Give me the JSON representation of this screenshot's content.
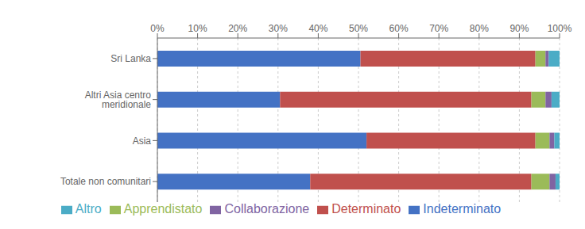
{
  "chart_data": {
    "type": "bar",
    "orientation": "horizontal",
    "stacked": true,
    "categories": [
      "Sri Lanka",
      "Altri Asia centro meridionale",
      "Asia",
      "Totale non comunitari"
    ],
    "series": [
      {
        "name": "Indeterminato",
        "color": "#4472C4",
        "values": [
          50.5,
          30.5,
          52.0,
          38.0
        ]
      },
      {
        "name": "Determinato",
        "color": "#C0504D",
        "values": [
          43.5,
          62.5,
          42.0,
          55.0
        ]
      },
      {
        "name": "Apprendistato",
        "color": "#9BBB59",
        "values": [
          2.5,
          3.5,
          3.5,
          4.5
        ]
      },
      {
        "name": "Collaborazione",
        "color": "#8064A2",
        "values": [
          0.8,
          1.5,
          1.2,
          1.5
        ]
      },
      {
        "name": "Altro",
        "color": "#4BACC6",
        "values": [
          2.7,
          2.0,
          1.3,
          1.0
        ]
      }
    ],
    "xlim": [
      0,
      100
    ],
    "xticks": [
      {
        "value": 0,
        "label": "0%"
      },
      {
        "value": 10,
        "label": "10%"
      },
      {
        "value": 20,
        "label": "20%"
      },
      {
        "value": 30,
        "label": "30%"
      },
      {
        "value": 40,
        "label": "40%"
      },
      {
        "value": 50,
        "label": "50%"
      },
      {
        "value": 60,
        "label": "60%"
      },
      {
        "value": 70,
        "label": "70%"
      },
      {
        "value": 80,
        "label": "80%"
      },
      {
        "value": 90,
        "label": "90%"
      },
      {
        "value": 100,
        "label": "100%"
      }
    ],
    "grid": true,
    "legend": "bottom"
  }
}
